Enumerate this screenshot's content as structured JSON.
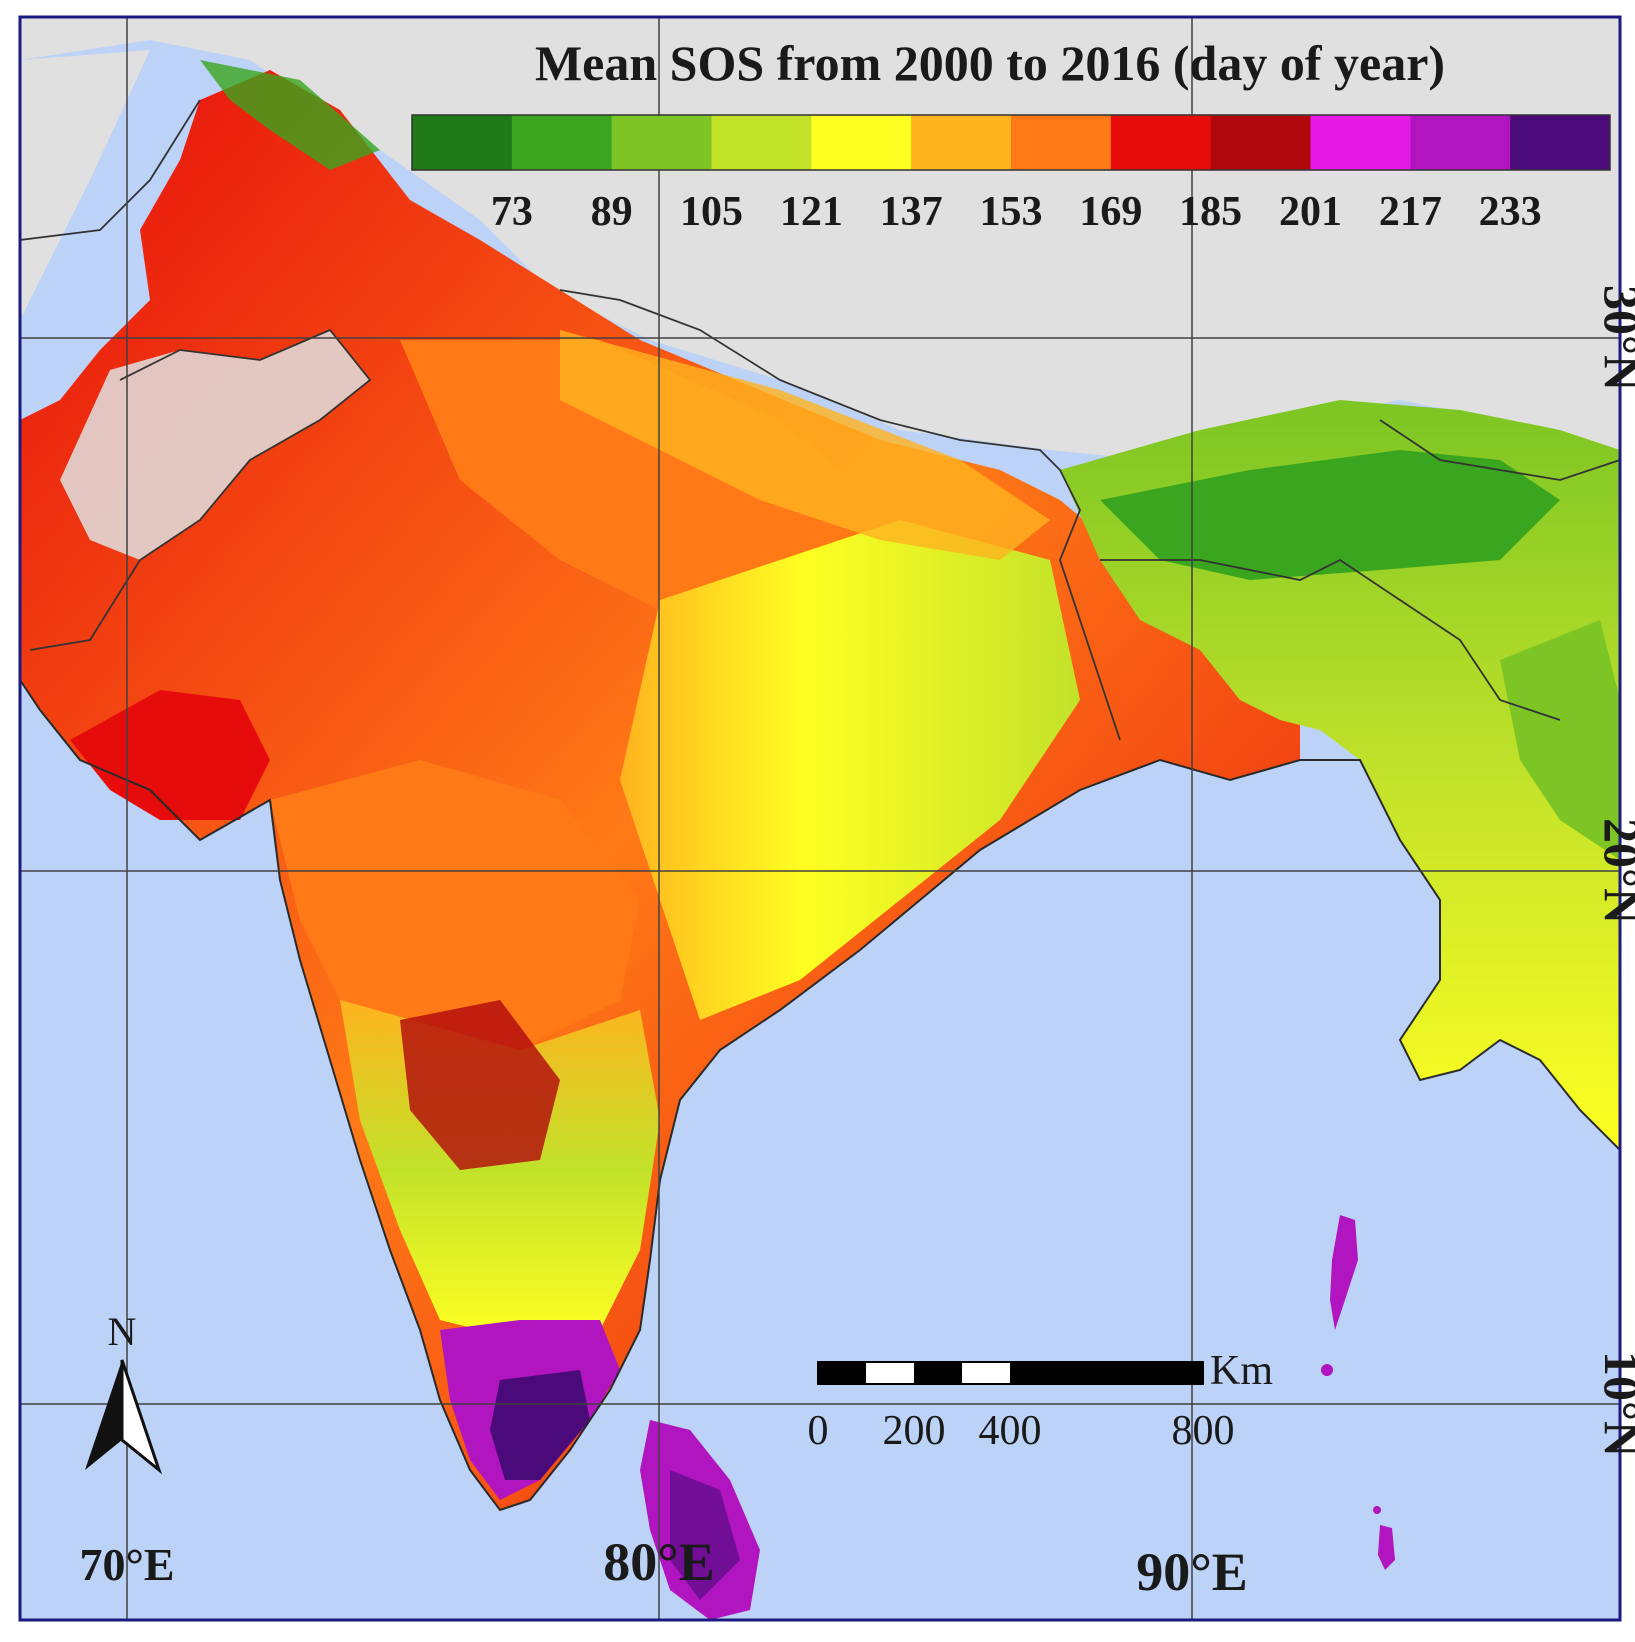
{
  "map": {
    "title": "Mean SOS from 2000 to 2016 (day of year)",
    "legend": {
      "colors": [
        "#1e7a17",
        "#3aa51e",
        "#7cc524",
        "#c2e22a",
        "#ffff22",
        "#ffb31f",
        "#ff7a17",
        "#e60c0c",
        "#b0070d",
        "#e61ae6",
        "#b015c0",
        "#4a0a7a"
      ],
      "tick_labels": [
        "73",
        "89",
        "105",
        "121",
        "137",
        "153",
        "169",
        "185",
        "201",
        "217",
        "233"
      ]
    },
    "longitude_labels": [
      "70°E",
      "80°E",
      "90°E"
    ],
    "latitude_labels": [
      "30°N",
      "20°N",
      "10°N"
    ],
    "north_arrow_label": "N",
    "scale_bar": {
      "unit": "Km",
      "labels": [
        "0",
        "200",
        "400",
        "800"
      ]
    },
    "colors": {
      "ocean": "#bcd2f7",
      "land_outside": "#e0e0e0",
      "frame": "#1a1a80",
      "grid": "#404040"
    }
  }
}
